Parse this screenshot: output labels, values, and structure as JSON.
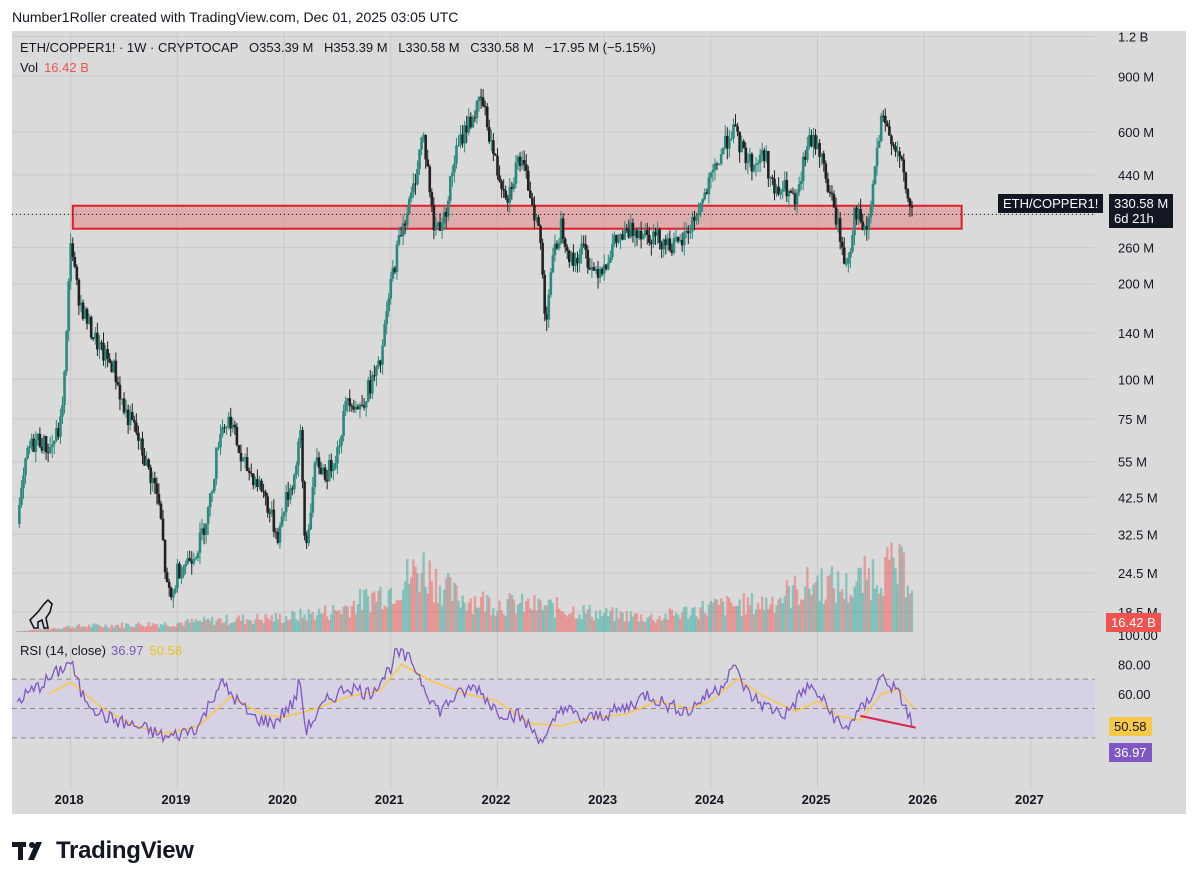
{
  "header": {
    "credit": "Number1Roller created with TradingView.com, Dec 01, 2025 03:05 UTC"
  },
  "legend": {
    "symbol": "ETH/COPPER1! · 1W · CRYPTOCAP",
    "open": "O353.39 M",
    "high": "H353.39 M",
    "low": "L330.58 M",
    "close": "C330.58 M",
    "change": "−17.95 M (−5.15%)"
  },
  "vol_legend": {
    "label": "Vol",
    "value": "16.42 B"
  },
  "rsi_legend": {
    "label": "RSI (14, close)",
    "rsi": "36.97",
    "ma": "50.58"
  },
  "price_tag": {
    "label": "ETH/COPPER1!",
    "price": "330.58 M",
    "countdown": "6d 21h"
  },
  "vol_tag": "16.42 B",
  "rsi_tags": {
    "ma": "50.58",
    "rsi": "36.97"
  },
  "colors": {
    "up": "#26a69a",
    "down": "#ef5350",
    "rsi": "#7e57c2",
    "rsi_ma": "#f7c948",
    "zone": "#e8575c",
    "frame": "#dadada"
  },
  "logo_text": "TradingView",
  "chart_data": {
    "type": "candlestick",
    "title": "ETH/COPPER1! · 1W · CRYPTOCAP",
    "scale": "log",
    "y_ticks": [
      "1.2 B",
      "900 M",
      "600 M",
      "440 M",
      "330.58 M",
      "260 M",
      "200 M",
      "140 M",
      "100 M",
      "75 M",
      "55 M",
      "42.5 M",
      "32.5 M",
      "24.5 M",
      "18.5 M"
    ],
    "y_tick_values": [
      1200,
      900,
      600,
      440,
      330.58,
      260,
      200,
      140,
      100,
      75,
      55,
      42.5,
      32.5,
      24.5,
      18.5
    ],
    "x_ticks": [
      "2018",
      "2019",
      "2020",
      "2021",
      "2022",
      "2023",
      "2024",
      "2025",
      "2026",
      "2027"
    ],
    "x_range": [
      2017.45,
      2027.6
    ],
    "y_range_millions": [
      16,
      1250
    ],
    "price_path": [
      [
        2017.5,
        35
      ],
      [
        2017.6,
        60
      ],
      [
        2017.7,
        65
      ],
      [
        2017.8,
        60
      ],
      [
        2017.9,
        70
      ],
      [
        2017.95,
        110
      ],
      [
        2018.0,
        280
      ],
      [
        2018.05,
        200
      ],
      [
        2018.1,
        170
      ],
      [
        2018.2,
        140
      ],
      [
        2018.3,
        120
      ],
      [
        2018.4,
        110
      ],
      [
        2018.5,
        80
      ],
      [
        2018.6,
        70
      ],
      [
        2018.7,
        55
      ],
      [
        2018.8,
        45
      ],
      [
        2018.85,
        35
      ],
      [
        2018.9,
        22
      ],
      [
        2018.95,
        20
      ],
      [
        2019.0,
        25
      ],
      [
        2019.1,
        27
      ],
      [
        2019.2,
        30
      ],
      [
        2019.3,
        40
      ],
      [
        2019.4,
        70
      ],
      [
        2019.5,
        75
      ],
      [
        2019.6,
        55
      ],
      [
        2019.7,
        50
      ],
      [
        2019.8,
        45
      ],
      [
        2019.9,
        35
      ],
      [
        2019.95,
        32
      ],
      [
        2020.0,
        40
      ],
      [
        2020.1,
        50
      ],
      [
        2020.15,
        70
      ],
      [
        2020.2,
        28
      ],
      [
        2020.25,
        40
      ],
      [
        2020.3,
        55
      ],
      [
        2020.4,
        50
      ],
      [
        2020.5,
        60
      ],
      [
        2020.6,
        90
      ],
      [
        2020.7,
        80
      ],
      [
        2020.8,
        95
      ],
      [
        2020.9,
        110
      ],
      [
        2021.0,
        200
      ],
      [
        2021.1,
        300
      ],
      [
        2021.2,
        380
      ],
      [
        2021.3,
        600
      ],
      [
        2021.35,
        450
      ],
      [
        2021.4,
        300
      ],
      [
        2021.5,
        320
      ],
      [
        2021.6,
        500
      ],
      [
        2021.7,
        620
      ],
      [
        2021.8,
        700
      ],
      [
        2021.85,
        760
      ],
      [
        2021.9,
        650
      ],
      [
        2022.0,
        450
      ],
      [
        2022.1,
        380
      ],
      [
        2022.2,
        500
      ],
      [
        2022.3,
        400
      ],
      [
        2022.4,
        280
      ],
      [
        2022.45,
        150
      ],
      [
        2022.5,
        220
      ],
      [
        2022.6,
        310
      ],
      [
        2022.7,
        230
      ],
      [
        2022.8,
        260
      ],
      [
        2022.9,
        220
      ],
      [
        2023.0,
        230
      ],
      [
        2023.1,
        270
      ],
      [
        2023.3,
        300
      ],
      [
        2023.5,
        280
      ],
      [
        2023.6,
        270
      ],
      [
        2023.7,
        260
      ],
      [
        2023.8,
        300
      ],
      [
        2023.9,
        350
      ],
      [
        2024.0,
        420
      ],
      [
        2024.1,
        520
      ],
      [
        2024.2,
        620
      ],
      [
        2024.3,
        520
      ],
      [
        2024.4,
        470
      ],
      [
        2024.5,
        520
      ],
      [
        2024.6,
        380
      ],
      [
        2024.7,
        400
      ],
      [
        2024.8,
        350
      ],
      [
        2024.9,
        550
      ],
      [
        2025.0,
        560
      ],
      [
        2025.1,
        400
      ],
      [
        2025.2,
        300
      ],
      [
        2025.25,
        230
      ],
      [
        2025.3,
        250
      ],
      [
        2025.35,
        350
      ],
      [
        2025.45,
        280
      ],
      [
        2025.5,
        350
      ],
      [
        2025.55,
        500
      ],
      [
        2025.6,
        650
      ],
      [
        2025.65,
        610
      ],
      [
        2025.7,
        580
      ],
      [
        2025.8,
        450
      ],
      [
        2025.85,
        360
      ],
      [
        2025.9,
        331
      ]
    ],
    "volume_path": [
      [
        2017.5,
        0.2
      ],
      [
        2018.0,
        1.5
      ],
      [
        2018.5,
        2
      ],
      [
        2019.0,
        2.5
      ],
      [
        2019.5,
        3.5
      ],
      [
        2020.0,
        4
      ],
      [
        2020.5,
        6
      ],
      [
        2021.0,
        12
      ],
      [
        2021.3,
        18
      ],
      [
        2021.6,
        10
      ],
      [
        2022.0,
        8
      ],
      [
        2022.5,
        7
      ],
      [
        2023.0,
        5
      ],
      [
        2023.5,
        4
      ],
      [
        2024.0,
        7
      ],
      [
        2024.5,
        8
      ],
      [
        2025.0,
        14
      ],
      [
        2025.3,
        12
      ],
      [
        2025.6,
        18
      ],
      [
        2025.9,
        16.42
      ]
    ],
    "resistance_zone": {
      "from_year": 2018.02,
      "to_year": 2026.35,
      "top_millions": 352,
      "bottom_millions": 298
    },
    "last_price_millions": 330.58,
    "rsi": {
      "ticks": [
        "100.00",
        "80.00",
        "60.00"
      ],
      "tick_values": [
        100,
        80,
        60
      ],
      "upper_band": 70,
      "mid_band": 50,
      "lower_band": 30,
      "path": [
        [
          2017.5,
          55
        ],
        [
          2017.8,
          70
        ],
        [
          2018.0,
          82
        ],
        [
          2018.1,
          60
        ],
        [
          2018.3,
          45
        ],
        [
          2018.5,
          40
        ],
        [
          2018.7,
          36
        ],
        [
          2018.9,
          30
        ],
        [
          2019.0,
          32
        ],
        [
          2019.2,
          38
        ],
        [
          2019.4,
          68
        ],
        [
          2019.5,
          60
        ],
        [
          2019.7,
          44
        ],
        [
          2019.9,
          40
        ],
        [
          2020.1,
          55
        ],
        [
          2020.15,
          70
        ],
        [
          2020.2,
          35
        ],
        [
          2020.4,
          55
        ],
        [
          2020.6,
          65
        ],
        [
          2020.8,
          60
        ],
        [
          2021.0,
          78
        ],
        [
          2021.05,
          88
        ],
        [
          2021.2,
          82
        ],
        [
          2021.35,
          60
        ],
        [
          2021.45,
          48
        ],
        [
          2021.6,
          58
        ],
        [
          2021.8,
          65
        ],
        [
          2022.0,
          48
        ],
        [
          2022.2,
          45
        ],
        [
          2022.4,
          30
        ],
        [
          2022.45,
          28
        ],
        [
          2022.6,
          52
        ],
        [
          2022.8,
          42
        ],
        [
          2023.0,
          46
        ],
        [
          2023.2,
          50
        ],
        [
          2023.4,
          60
        ],
        [
          2023.6,
          52
        ],
        [
          2023.8,
          48
        ],
        [
          2023.9,
          56
        ],
        [
          2024.1,
          65
        ],
        [
          2024.2,
          80
        ],
        [
          2024.35,
          60
        ],
        [
          2024.5,
          52
        ],
        [
          2024.7,
          46
        ],
        [
          2024.9,
          65
        ],
        [
          2025.0,
          60
        ],
        [
          2025.15,
          45
        ],
        [
          2025.25,
          35
        ],
        [
          2025.35,
          45
        ],
        [
          2025.45,
          52
        ],
        [
          2025.6,
          72
        ],
        [
          2025.7,
          65
        ],
        [
          2025.8,
          55
        ],
        [
          2025.9,
          37
        ]
      ],
      "ma_path": [
        [
          2017.8,
          60
        ],
        [
          2018.0,
          68
        ],
        [
          2018.3,
          50
        ],
        [
          2018.6,
          38
        ],
        [
          2018.9,
          33
        ],
        [
          2019.2,
          38
        ],
        [
          2019.5,
          58
        ],
        [
          2019.8,
          46
        ],
        [
          2020.0,
          44
        ],
        [
          2020.3,
          50
        ],
        [
          2020.6,
          58
        ],
        [
          2020.9,
          62
        ],
        [
          2021.1,
          80
        ],
        [
          2021.4,
          68
        ],
        [
          2021.7,
          60
        ],
        [
          2022.0,
          55
        ],
        [
          2022.3,
          40
        ],
        [
          2022.6,
          38
        ],
        [
          2022.9,
          44
        ],
        [
          2023.2,
          46
        ],
        [
          2023.5,
          55
        ],
        [
          2023.8,
          50
        ],
        [
          2024.0,
          55
        ],
        [
          2024.25,
          70
        ],
        [
          2024.5,
          58
        ],
        [
          2024.8,
          48
        ],
        [
          2025.0,
          55
        ],
        [
          2025.2,
          45
        ],
        [
          2025.4,
          42
        ],
        [
          2025.6,
          60
        ],
        [
          2025.75,
          63
        ],
        [
          2025.9,
          50.58
        ]
      ],
      "divergence_line": [
        [
          2025.4,
          45
        ],
        [
          2025.92,
          37
        ]
      ],
      "last_rsi": 36.97,
      "last_ma": 50.58
    }
  }
}
